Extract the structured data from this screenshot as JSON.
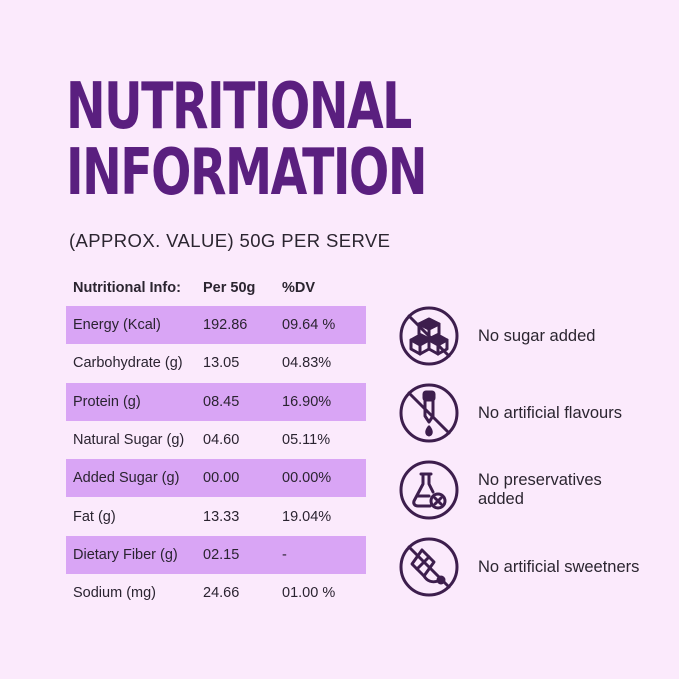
{
  "title": {
    "line1": "NUTRITIONAL",
    "line2": "INFORMATION"
  },
  "subtitle": "(APPROX. VALUE) 50G PER SERVE",
  "table": {
    "headers": [
      "Nutritional Info:",
      "Per 50g",
      "%DV"
    ],
    "rows": [
      [
        "Energy (Kcal)",
        "192.86",
        "09.64 %"
      ],
      [
        "Carbohydrate (g)",
        "13.05",
        "04.83%"
      ],
      [
        "Protein (g)",
        "08.45",
        "16.90%"
      ],
      [
        "Natural Sugar (g)",
        "04.60",
        "05.11%"
      ],
      [
        "Added Sugar (g)",
        "00.00",
        "00.00%"
      ],
      [
        "Fat (g)",
        "13.33",
        "19.04%"
      ],
      [
        "Dietary Fiber (g)",
        "02.15",
        "-"
      ],
      [
        "Sodium (mg)",
        "24.66",
        "01.00 %"
      ]
    ]
  },
  "features": [
    {
      "icon": "sugar-cubes-crossed-icon",
      "label": "No sugar added"
    },
    {
      "icon": "dropper-crossed-icon",
      "label": "No artificial flavours"
    },
    {
      "icon": "flask-cross-icon",
      "label": "No preservatives\nadded"
    },
    {
      "icon": "sweetener-crossed-icon",
      "label": "No artificial sweetners"
    }
  ],
  "colors": {
    "background": "#fbeafc",
    "title": "#5a1f7f",
    "row_highlight": "#d9a5f5",
    "icon": "#3d1e4d"
  }
}
